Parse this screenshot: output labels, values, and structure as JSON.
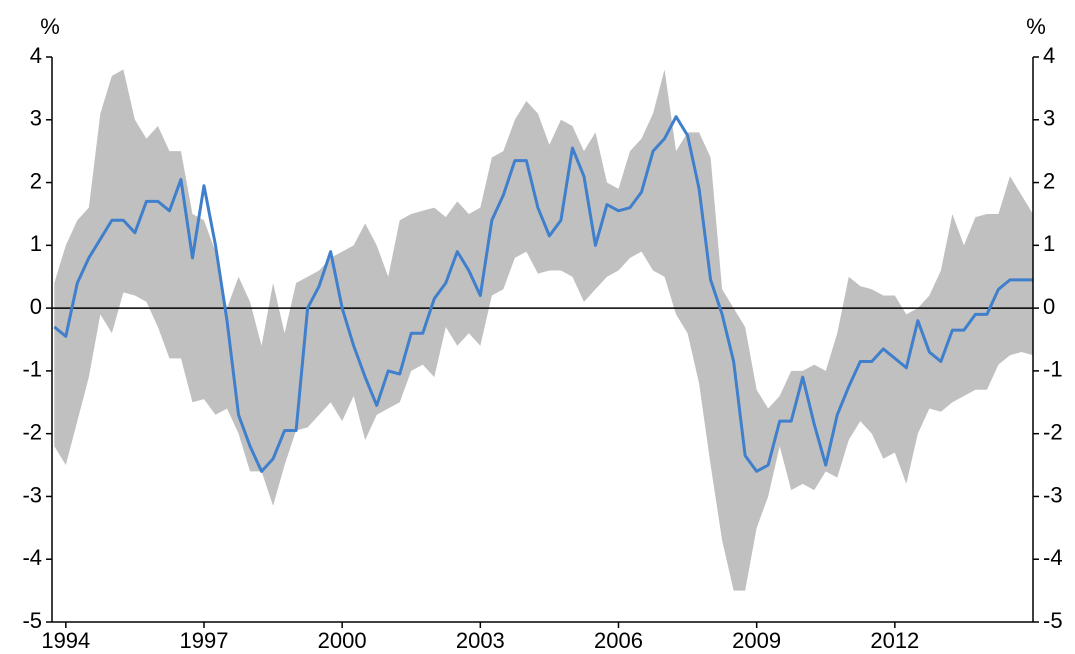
{
  "chart_data": {
    "type": "line",
    "y_label": "%",
    "y2_label": "%",
    "x": [
      1993.75,
      1994,
      1994.25,
      1994.5,
      1994.75,
      1995,
      1995.25,
      1995.5,
      1995.75,
      1996,
      1996.25,
      1996.5,
      1996.75,
      1997,
      1997.25,
      1997.5,
      1997.75,
      1998,
      1998.25,
      1998.5,
      1998.75,
      1999,
      1999.25,
      1999.5,
      1999.75,
      2000,
      2000.25,
      2000.5,
      2000.75,
      2001,
      2001.25,
      2001.5,
      2001.75,
      2002,
      2002.25,
      2002.5,
      2002.75,
      2003,
      2003.25,
      2003.5,
      2003.75,
      2004,
      2004.25,
      2004.5,
      2004.75,
      2005,
      2005.25,
      2005.5,
      2005.75,
      2006,
      2006.25,
      2006.5,
      2006.75,
      2007,
      2007.25,
      2007.5,
      2007.75,
      2008,
      2008.25,
      2008.5,
      2008.75,
      2009,
      2009.25,
      2009.5,
      2009.75,
      2010,
      2010.25,
      2010.5,
      2010.75,
      2011,
      2011.25,
      2011.5,
      2011.75,
      2012,
      2012.25,
      2012.5,
      2012.75,
      2013,
      2013.25,
      2013.5,
      2013.75,
      2014,
      2014.25,
      2014.5,
      2014.75,
      2015
    ],
    "series": [
      {
        "color": "#3f7fcc",
        "values": [
          -0.3,
          -0.45,
          0.4,
          0.8,
          1.1,
          1.4,
          1.4,
          1.2,
          1.7,
          1.7,
          1.55,
          2.05,
          0.8,
          1.95,
          1.0,
          -0.2,
          -1.7,
          -2.2,
          -2.6,
          -2.4,
          -1.95,
          -1.95,
          0.0,
          0.35,
          0.9,
          0.0,
          -0.6,
          -1.1,
          -1.55,
          -1.0,
          -1.05,
          -0.4,
          -0.4,
          0.15,
          0.4,
          0.9,
          0.6,
          0.2,
          1.4,
          1.8,
          2.35,
          2.35,
          1.6,
          1.15,
          1.4,
          2.55,
          2.1,
          1.0,
          1.65,
          1.55,
          1.6,
          1.85,
          2.5,
          2.7,
          3.05,
          2.75,
          1.9,
          0.45,
          -0.1,
          -0.85,
          -2.35,
          -2.6,
          -2.5,
          -1.8,
          -1.8,
          -1.1,
          -1.85,
          -2.5,
          -1.7,
          -1.25,
          -0.85,
          -0.85,
          -0.65,
          -0.8,
          -0.95,
          -0.2,
          -0.7,
          -0.85,
          -0.35,
          -0.35,
          -0.1,
          -0.1,
          0.3,
          0.45,
          0.45,
          0.45
        ]
      }
    ],
    "band": {
      "color": "#c0c0c0",
      "upper": [
        0.4,
        1.0,
        1.4,
        1.6,
        3.1,
        3.7,
        3.8,
        3.0,
        2.7,
        2.9,
        2.5,
        2.5,
        1.5,
        1.4,
        0.9,
        0.0,
        0.5,
        0.1,
        -0.6,
        0.4,
        -0.4,
        0.4,
        0.5,
        0.6,
        0.8,
        0.9,
        1.0,
        1.35,
        1.0,
        0.5,
        1.4,
        1.5,
        1.55,
        1.6,
        1.45,
        1.7,
        1.5,
        1.6,
        2.4,
        2.5,
        3.0,
        3.3,
        3.1,
        2.6,
        3.0,
        2.9,
        2.5,
        2.8,
        2.0,
        1.9,
        2.5,
        2.7,
        3.1,
        3.8,
        2.5,
        2.8,
        2.8,
        2.4,
        0.3,
        0.0,
        -0.3,
        -1.3,
        -1.6,
        -1.4,
        -1.0,
        -1.0,
        -0.9,
        -1.0,
        -0.4,
        0.5,
        0.35,
        0.3,
        0.2,
        0.2,
        -0.1,
        0.0,
        0.2,
        0.6,
        1.5,
        1.0,
        1.45,
        1.5,
        1.5,
        2.1,
        1.8,
        1.5
      ],
      "lower": [
        -2.2,
        -2.5,
        -1.8,
        -1.1,
        -0.1,
        -0.4,
        0.25,
        0.2,
        0.1,
        -0.3,
        -0.8,
        -0.8,
        -1.5,
        -1.45,
        -1.7,
        -1.6,
        -2.0,
        -2.6,
        -2.6,
        -3.15,
        -2.5,
        -1.95,
        -1.9,
        -1.7,
        -1.5,
        -1.8,
        -1.4,
        -2.1,
        -1.7,
        -1.6,
        -1.5,
        -1.0,
        -0.9,
        -1.1,
        -0.3,
        -0.6,
        -0.4,
        -0.6,
        0.2,
        0.3,
        0.8,
        0.9,
        0.55,
        0.6,
        0.6,
        0.5,
        0.1,
        0.3,
        0.5,
        0.6,
        0.8,
        0.9,
        0.6,
        0.5,
        -0.1,
        -0.4,
        -1.2,
        -2.5,
        -3.7,
        -4.5,
        -4.5,
        -3.5,
        -3.0,
        -2.2,
        -2.9,
        -2.8,
        -2.9,
        -2.6,
        -2.7,
        -2.1,
        -1.8,
        -2.0,
        -2.4,
        -2.3,
        -2.8,
        -2.0,
        -1.6,
        -1.65,
        -1.5,
        -1.4,
        -1.3,
        -1.3,
        -0.9,
        -0.75,
        -0.7,
        -0.75
      ]
    },
    "xlim": [
      1993.7,
      2015.0
    ],
    "xticks": [
      1994,
      1997,
      2000,
      2003,
      2006,
      2009,
      2012
    ],
    "ylim": [
      -5,
      4
    ],
    "yticks": [
      -5,
      -4,
      -3,
      -2,
      -1,
      0,
      1,
      2,
      3,
      4
    ],
    "y2lim": [
      -5,
      4
    ],
    "y2ticks": [
      -5,
      -4,
      -3,
      -2,
      -1,
      0,
      1,
      2,
      3,
      4
    ],
    "zero_line": true
  }
}
